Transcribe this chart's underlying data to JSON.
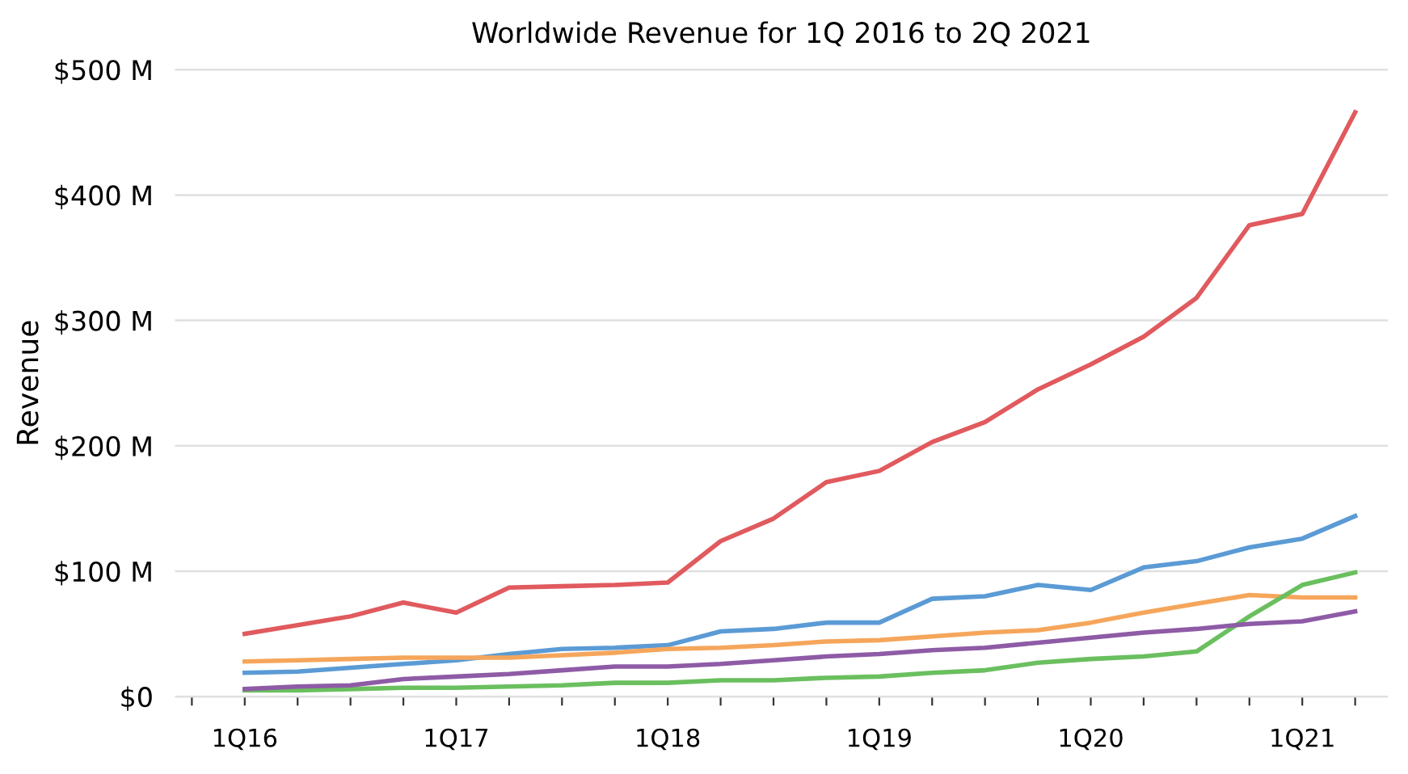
{
  "chart_data": {
    "type": "line",
    "title": "Worldwide Revenue for 1Q 2016 to 2Q 2021",
    "ylabel": "Revenue",
    "categories": [
      null,
      "1Q16",
      null,
      null,
      null,
      "1Q17",
      null,
      null,
      null,
      "1Q18",
      null,
      null,
      null,
      "1Q19",
      null,
      null,
      null,
      "1Q20",
      null,
      null,
      null,
      "1Q21",
      null
    ],
    "ylim": [
      0,
      500
    ],
    "yticks": [
      {
        "value": 0,
        "label": "$0"
      },
      {
        "value": 100,
        "label": "$100 M"
      },
      {
        "value": 200,
        "label": "$200 M"
      },
      {
        "value": 300,
        "label": "$300 M"
      },
      {
        "value": 400,
        "label": "$400 M"
      },
      {
        "value": 500,
        "label": "$500 M"
      }
    ],
    "grid": "y",
    "marker": "none",
    "line_style": "solid",
    "series": [
      {
        "color": "#e05a5e",
        "values": [
          null,
          50,
          57,
          64,
          75,
          67,
          87,
          88,
          89,
          91,
          124,
          142,
          171,
          180,
          203,
          219,
          245,
          265,
          287,
          318,
          376,
          385,
          466
        ]
      },
      {
        "color": "#5b9bd5",
        "values": [
          null,
          19,
          20,
          23,
          26,
          29,
          34,
          38,
          39,
          41,
          52,
          54,
          59,
          59,
          78,
          80,
          89,
          85,
          103,
          108,
          119,
          126,
          144
        ]
      },
      {
        "color": "#f5a65b",
        "values": [
          null,
          28,
          29,
          30,
          31,
          31,
          31,
          33,
          35,
          38,
          39,
          41,
          44,
          45,
          48,
          51,
          53,
          59,
          67,
          74,
          81,
          79,
          79
        ]
      },
      {
        "color": "#6abf5e",
        "values": [
          null,
          5,
          5,
          6,
          7,
          7,
          8,
          9,
          11,
          11,
          13,
          13,
          15,
          16,
          19,
          21,
          27,
          30,
          32,
          36,
          64,
          89,
          99
        ]
      },
      {
        "color": "#8e5ba6",
        "values": [
          null,
          6,
          8,
          9,
          14,
          16,
          18,
          21,
          24,
          24,
          26,
          29,
          32,
          34,
          37,
          39,
          43,
          47,
          51,
          54,
          58,
          60,
          68
        ]
      }
    ]
  }
}
